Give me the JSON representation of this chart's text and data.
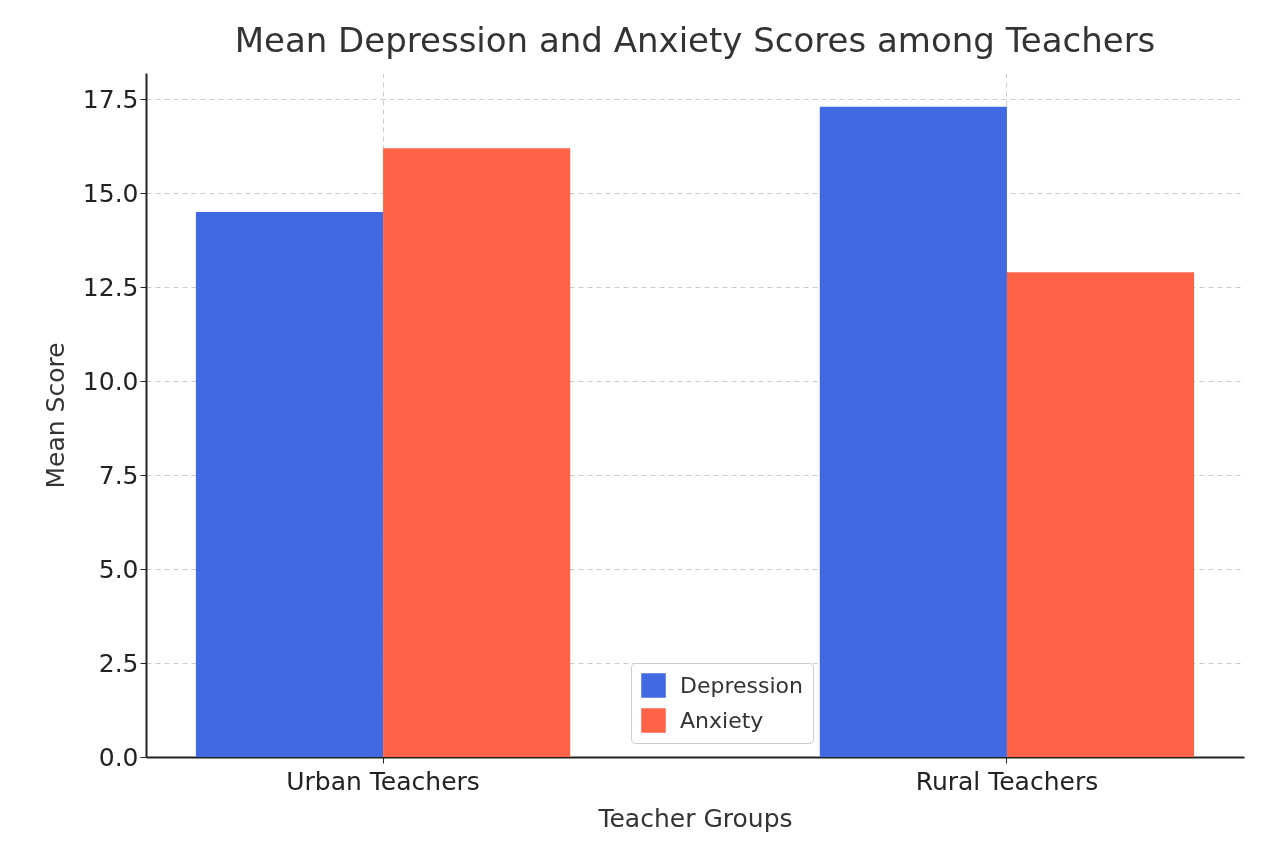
{
  "chart_data": {
    "type": "bar",
    "title": "Mean Depression and Anxiety Scores among Teachers",
    "xlabel": "Teacher Groups",
    "ylabel": "Mean Score",
    "categories": [
      "Urban Teachers",
      "Rural Teachers"
    ],
    "series": [
      {
        "name": "Depression",
        "color": "#4169e1",
        "values": [
          14.5,
          17.3
        ]
      },
      {
        "name": "Anxiety",
        "color": "#ff6347",
        "values": [
          16.2,
          12.9
        ]
      }
    ],
    "ylim": [
      0,
      18.2
    ],
    "yticks": [
      {
        "value": 0,
        "label": "0.0"
      },
      2.5,
      {
        "value": 5,
        "label": "5.0"
      },
      7.5,
      {
        "value": 10,
        "label": "10.0"
      },
      12.5,
      {
        "value": 15,
        "label": "15.0"
      },
      17.5
    ],
    "grid": true,
    "legend": "bottom"
  }
}
